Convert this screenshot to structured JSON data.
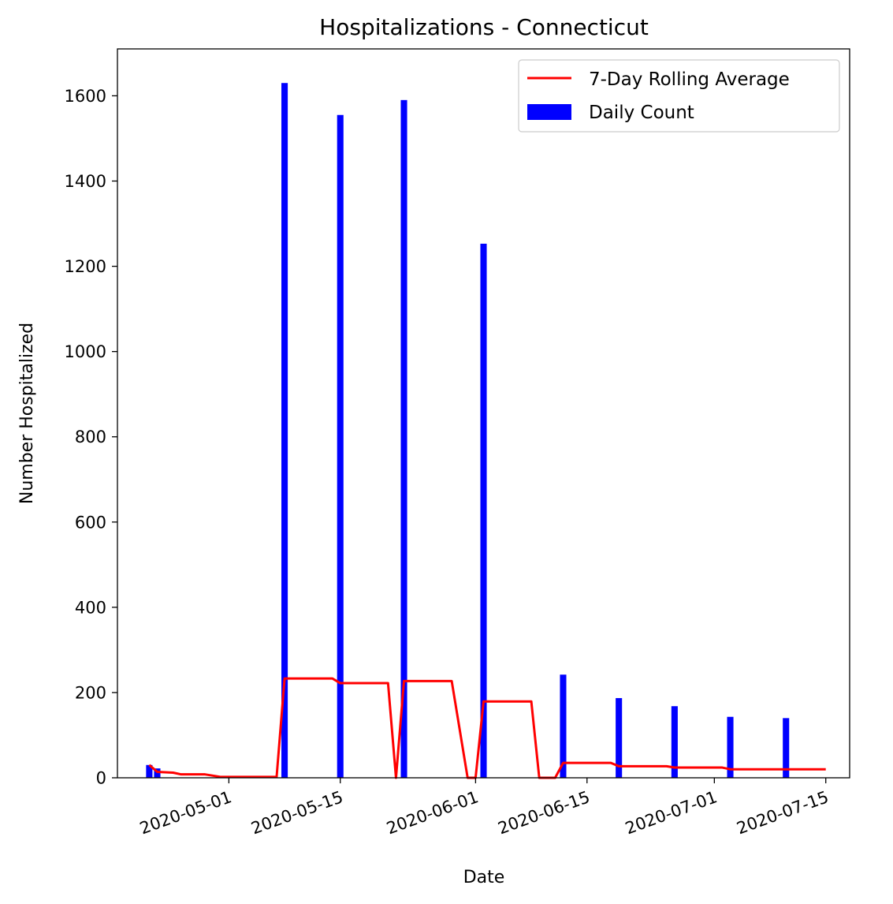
{
  "chart_data": {
    "type": "bar",
    "title": "Hospitalizations - Connecticut",
    "xlabel": "Date",
    "ylabel": "Number Hospitalized",
    "xlim": [
      "2020-04-17",
      "2020-07-18"
    ],
    "ylim": [
      0,
      1710
    ],
    "x_ticks": [
      "2020-05-01",
      "2020-05-15",
      "2020-06-01",
      "2020-06-15",
      "2020-07-01",
      "2020-07-15"
    ],
    "y_ticks": [
      0,
      200,
      400,
      600,
      800,
      1000,
      1200,
      1400,
      1600
    ],
    "grid": false,
    "legend_position": "top-right",
    "colors": {
      "bars": "#0000ff",
      "line": "#ff0000"
    },
    "series": [
      {
        "name": "Daily Count",
        "type": "bar",
        "points": [
          {
            "x": "2020-04-21",
            "y": 30
          },
          {
            "x": "2020-04-22",
            "y": 22
          },
          {
            "x": "2020-05-08",
            "y": 1630
          },
          {
            "x": "2020-05-15",
            "y": 1555
          },
          {
            "x": "2020-05-23",
            "y": 1590
          },
          {
            "x": "2020-06-02",
            "y": 1253
          },
          {
            "x": "2020-06-12",
            "y": 242
          },
          {
            "x": "2020-06-19",
            "y": 187
          },
          {
            "x": "2020-06-26",
            "y": 168
          },
          {
            "x": "2020-07-03",
            "y": 143
          },
          {
            "x": "2020-07-10",
            "y": 140
          }
        ]
      },
      {
        "name": "7-Day Rolling Average",
        "type": "line",
        "points": [
          {
            "x": "2020-04-21",
            "y": 30
          },
          {
            "x": "2020-04-22",
            "y": 14
          },
          {
            "x": "2020-04-24",
            "y": 12
          },
          {
            "x": "2020-04-25",
            "y": 8
          },
          {
            "x": "2020-04-28",
            "y": 8
          },
          {
            "x": "2020-04-30",
            "y": 2
          },
          {
            "x": "2020-05-07",
            "y": 2
          },
          {
            "x": "2020-05-08",
            "y": 233
          },
          {
            "x": "2020-05-14",
            "y": 233
          },
          {
            "x": "2020-05-15",
            "y": 222
          },
          {
            "x": "2020-05-21",
            "y": 222
          },
          {
            "x": "2020-05-22",
            "y": 0
          },
          {
            "x": "2020-05-23",
            "y": 227
          },
          {
            "x": "2020-05-29",
            "y": 227
          },
          {
            "x": "2020-05-31",
            "y": 0
          },
          {
            "x": "2020-06-01",
            "y": 0
          },
          {
            "x": "2020-06-02",
            "y": 179
          },
          {
            "x": "2020-06-08",
            "y": 179
          },
          {
            "x": "2020-06-09",
            "y": 0
          },
          {
            "x": "2020-06-11",
            "y": 0
          },
          {
            "x": "2020-06-12",
            "y": 35
          },
          {
            "x": "2020-06-18",
            "y": 35
          },
          {
            "x": "2020-06-19",
            "y": 27
          },
          {
            "x": "2020-06-25",
            "y": 27
          },
          {
            "x": "2020-06-26",
            "y": 24
          },
          {
            "x": "2020-07-02",
            "y": 24
          },
          {
            "x": "2020-07-03",
            "y": 20
          },
          {
            "x": "2020-07-15",
            "y": 20
          }
        ]
      }
    ]
  }
}
